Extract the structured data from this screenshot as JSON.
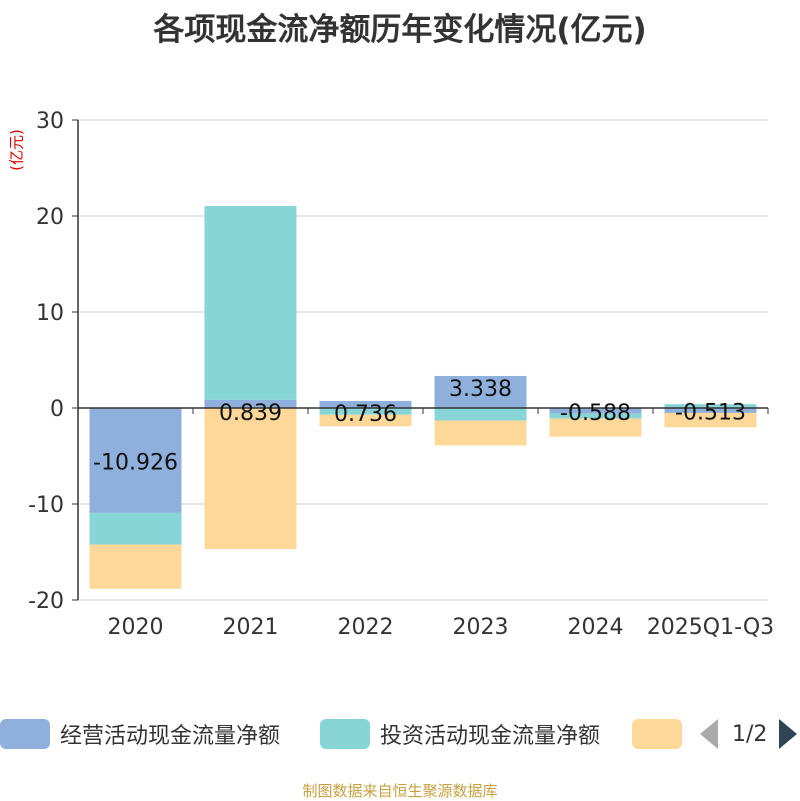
{
  "title": "各项现金流净额历年变化情况(亿元)",
  "unit_label": "(亿元)",
  "footer": "制图数据来自恒生聚源数据库",
  "legend": {
    "items": [
      {
        "label": "经营活动现金流量净额",
        "color": "#8fb0dc"
      },
      {
        "label": "投资活动现金流量净额",
        "color": "#88d5d8"
      },
      {
        "label": "",
        "color": "#fdd899"
      }
    ],
    "page_indicator": "1/2"
  },
  "chart_data": {
    "type": "bar",
    "stacked": true,
    "categories": [
      "2020",
      "2021",
      "2022",
      "2023",
      "2024",
      "2025Q1-Q3"
    ],
    "ylim": [
      -20,
      30
    ],
    "yticks": [
      30,
      20,
      10,
      0,
      -10,
      -20
    ],
    "grid": true,
    "legend_position": "bottom",
    "series": [
      {
        "name": "经营活动现金流量净额",
        "color": "#8fb0dc",
        "values": [
          -10.926,
          0.839,
          0.736,
          3.338,
          -0.588,
          -0.513
        ],
        "labels": [
          "-10.926",
          "0.839",
          "0.736",
          "3.338",
          "-0.588",
          "-0.513"
        ]
      },
      {
        "name": "投资活动现金流量净额",
        "color": "#88d5d8",
        "values": [
          -3.3,
          20.2,
          -0.7,
          -1.3,
          -0.5,
          0.4
        ]
      },
      {
        "color": "#fdd899",
        "values": [
          -4.6,
          -14.7,
          -1.2,
          -2.6,
          -1.9,
          -1.5
        ]
      }
    ]
  }
}
